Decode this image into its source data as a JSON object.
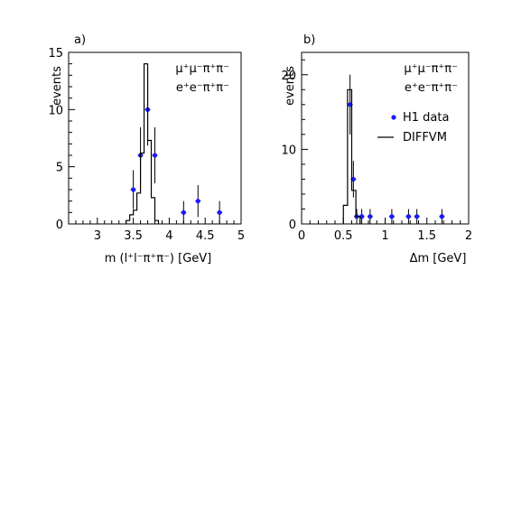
{
  "chart_data": [
    {
      "type": "histogram+errorbar",
      "panel_label": "a)",
      "ylabel": "events",
      "xlabel": "m (l⁺l⁻π⁺π⁻) [GeV]",
      "xlim": [
        2.6,
        5.0
      ],
      "ylim": [
        0,
        15
      ],
      "xticks": [
        3,
        3.5,
        4,
        4.5,
        5
      ],
      "xtick_labels": [
        "3",
        "3.5",
        "4",
        "4.5",
        "5"
      ],
      "yticks": [
        0,
        5,
        10,
        15
      ],
      "ytick_labels": [
        "0",
        "5",
        "10",
        "15"
      ],
      "annotations": [
        "μ⁺μ⁻π⁺π⁻",
        "e⁺e⁻π⁺π⁻"
      ],
      "series": [
        {
          "name": "H1 data",
          "kind": "points",
          "color": "#1a1aff",
          "x": [
            3.5,
            3.6,
            3.7,
            3.8,
            4.2,
            4.4,
            4.7
          ],
          "y": [
            3,
            6,
            10,
            6,
            1,
            2,
            1
          ],
          "err": [
            1.7,
            2.45,
            3.15,
            2.45,
            1.0,
            1.4,
            1.0
          ]
        },
        {
          "name": "DIFFVM",
          "kind": "histogram",
          "color": "#000000",
          "edges": [
            3.4,
            3.45,
            3.5,
            3.55,
            3.6,
            3.65,
            3.7,
            3.75,
            3.8,
            3.85
          ],
          "values": [
            0.3,
            0.8,
            1.2,
            2.7,
            6.2,
            14.0,
            7.3,
            2.3,
            0.3
          ]
        }
      ]
    },
    {
      "type": "histogram+errorbar",
      "panel_label": "b)",
      "ylabel": "events",
      "xlabel": "Δm [GeV]",
      "xlim": [
        0,
        2
      ],
      "ylim": [
        0,
        23
      ],
      "xticks": [
        0,
        0.5,
        1,
        1.5,
        2
      ],
      "xtick_labels": [
        "0",
        "0.5",
        "1",
        "1.5",
        "2"
      ],
      "yticks": [
        0,
        10,
        20
      ],
      "ytick_labels": [
        "0",
        "10",
        "20"
      ],
      "annotations": [
        "μ⁺μ⁻π⁺π⁻",
        "e⁺e⁻π⁺π⁻"
      ],
      "legend": [
        {
          "label": "H1 data",
          "kind": "points",
          "color": "#1a1aff"
        },
        {
          "label": "DIFFVM",
          "kind": "line",
          "color": "#000000"
        }
      ],
      "legend_position": "right",
      "series": [
        {
          "name": "H1 data",
          "kind": "points",
          "color": "#1a1aff",
          "x": [
            0.58,
            0.62,
            0.66,
            0.72,
            0.82,
            1.08,
            1.28,
            1.38,
            1.68
          ],
          "y": [
            16,
            6,
            1,
            1,
            1,
            1,
            1,
            1,
            1
          ],
          "err": [
            4.0,
            2.45,
            1.0,
            1.0,
            1.0,
            1.0,
            1.0,
            1.0,
            1.0
          ]
        },
        {
          "name": "DIFFVM",
          "kind": "histogram",
          "color": "#000000",
          "edges": [
            0.5,
            0.55,
            0.6,
            0.65,
            0.7
          ],
          "values": [
            2.5,
            18.0,
            4.5,
            1.0
          ]
        }
      ]
    }
  ]
}
